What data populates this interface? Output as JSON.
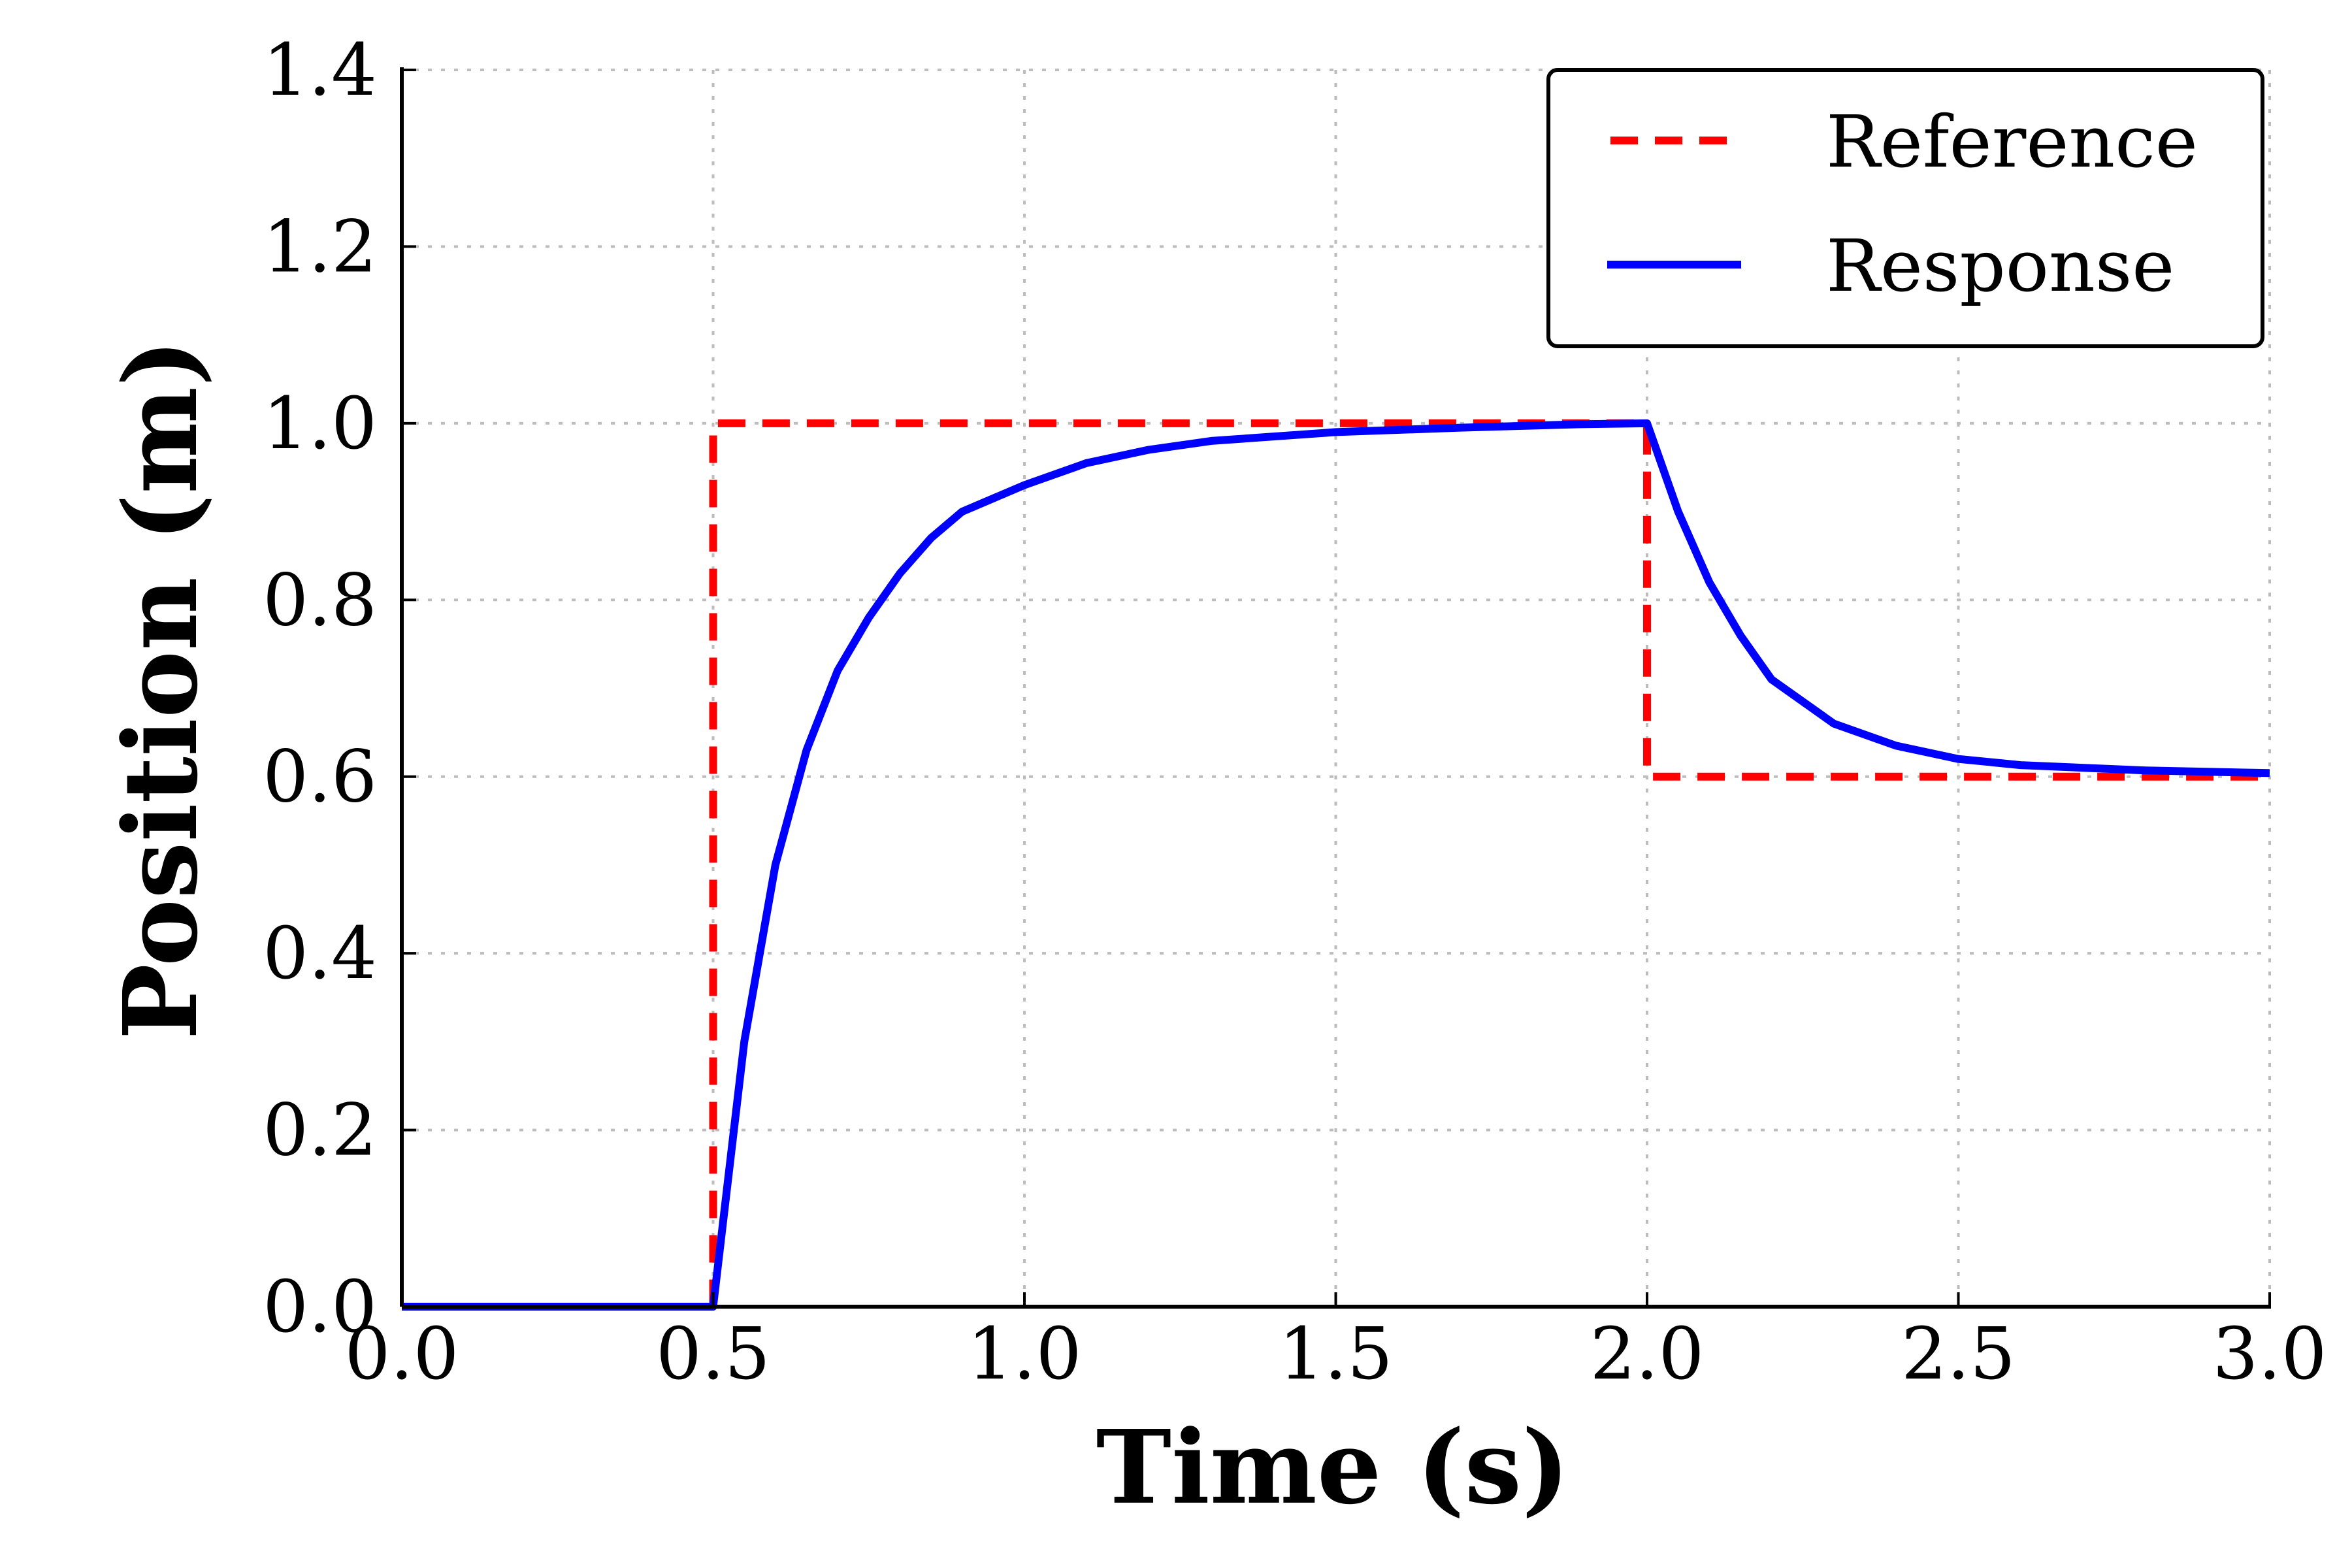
{
  "chart_data": {
    "type": "line",
    "title": "",
    "xlabel": "Time (s)",
    "ylabel": "Position (m)",
    "xlim": [
      0.0,
      3.0
    ],
    "ylim": [
      0.0,
      1.4
    ],
    "xticks": [
      "0.0",
      "0.5",
      "1.0",
      "1.5",
      "2.0",
      "2.5",
      "3.0"
    ],
    "yticks": [
      "0.0",
      "0.2",
      "0.4",
      "0.6",
      "0.8",
      "1.0",
      "1.2",
      "1.4"
    ],
    "grid": true,
    "legend_position": "top-right",
    "series": [
      {
        "name": "Reference",
        "color": "#ff0000",
        "style": "dashed",
        "x": [
          0.0,
          0.49,
          0.49,
          0.5,
          0.5,
          1.99,
          2.0,
          2.0,
          3.0
        ],
        "y": [
          0.0,
          0.0,
          0.0,
          0.0,
          1.0,
          1.0,
          1.0,
          0.6,
          0.6
        ]
      },
      {
        "name": "Response",
        "color": "#0000ff",
        "style": "solid",
        "x": [
          0.0,
          0.5,
          0.55,
          0.6,
          0.65,
          0.7,
          0.75,
          0.8,
          0.85,
          0.9,
          1.0,
          1.1,
          1.2,
          1.3,
          1.5,
          1.7,
          1.9,
          2.0,
          2.05,
          2.1,
          2.15,
          2.2,
          2.3,
          2.4,
          2.5,
          2.6,
          2.8,
          3.0
        ],
        "y": [
          0.0,
          0.0,
          0.3,
          0.5,
          0.63,
          0.72,
          0.78,
          0.83,
          0.87,
          0.9,
          0.93,
          0.955,
          0.97,
          0.98,
          0.99,
          0.995,
          0.999,
          1.0,
          0.9,
          0.82,
          0.76,
          0.71,
          0.66,
          0.635,
          0.62,
          0.613,
          0.607,
          0.604
        ]
      }
    ]
  }
}
